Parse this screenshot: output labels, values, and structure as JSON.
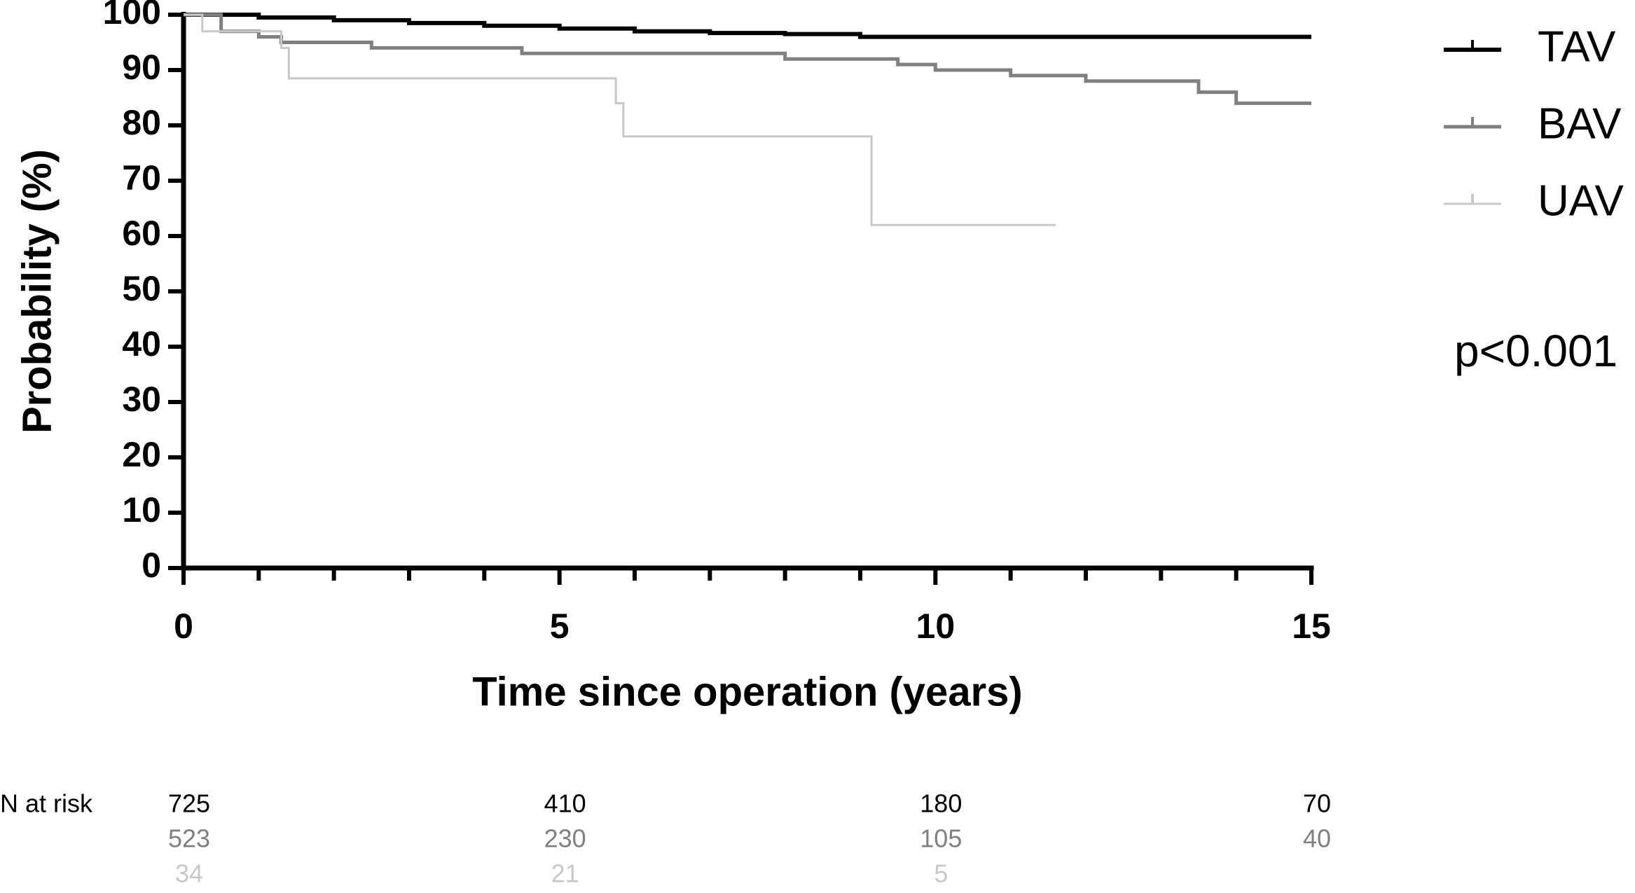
{
  "chart_data": {
    "type": "step",
    "y_label": "Probability (%)",
    "x_label": "Time since operation (years)",
    "xlim": [
      0,
      15
    ],
    "ylim": [
      0,
      100
    ],
    "xticks": [
      0,
      5,
      10,
      15
    ],
    "xminorticks": [
      1,
      2,
      3,
      4,
      6,
      7,
      8,
      9,
      11,
      12,
      13,
      14
    ],
    "yticks": [
      0,
      10,
      20,
      30,
      40,
      50,
      60,
      70,
      80,
      90,
      100
    ],
    "series": [
      {
        "name": "TAV",
        "color": "#000000",
        "x": [
          0,
          1,
          2,
          3,
          4,
          5,
          6,
          7,
          8,
          9,
          10,
          12,
          15
        ],
        "values": [
          100,
          99.5,
          99,
          98.5,
          98,
          97.5,
          97,
          96.7,
          96.5,
          96,
          96,
          96,
          96
        ]
      },
      {
        "name": "BAV",
        "color": "#808080",
        "x": [
          0,
          0.5,
          1,
          1.3,
          2.5,
          4.5,
          8,
          9.5,
          10,
          11,
          12,
          13.5,
          14,
          15
        ],
        "values": [
          100,
          97,
          96,
          95,
          94,
          93,
          92,
          91,
          90,
          89,
          88,
          86,
          84,
          84
        ]
      },
      {
        "name": "UAV",
        "color": "#c8c8c8",
        "x": [
          0,
          0.25,
          1.3,
          1.4,
          5.75,
          5.85,
          9.15,
          11.6
        ],
        "values": [
          100,
          97,
          94,
          88.5,
          84,
          78,
          62,
          62
        ]
      }
    ],
    "annotation": "p<0.001",
    "risk_table": {
      "label": "N at risk",
      "rows": [
        [
          725,
          410,
          180,
          70
        ],
        [
          523,
          230,
          105,
          40
        ],
        [
          34,
          21,
          5
        ]
      ]
    }
  }
}
